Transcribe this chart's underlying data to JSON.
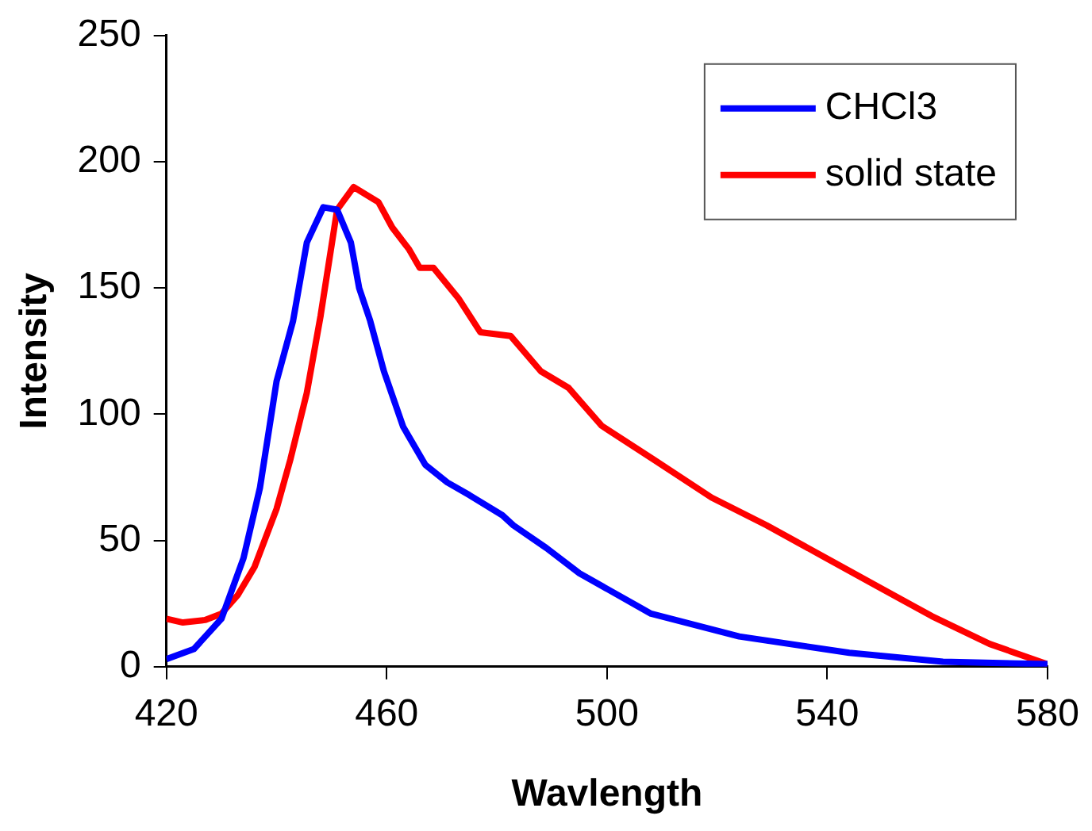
{
  "chart_data": {
    "type": "line",
    "xlabel": "Wavlength",
    "ylabel": "Intensity",
    "xlim": [
      420,
      580
    ],
    "xticks": [
      420,
      460,
      500,
      540,
      580
    ],
    "ylim": [
      0,
      250
    ],
    "yticks": [
      0,
      50,
      100,
      150,
      200,
      250
    ],
    "grid": false,
    "legend": "top right",
    "marker": "none",
    "line_style": "solid",
    "series": [
      {
        "name": "CHCl3",
        "color": "#0000ff",
        "x": [
          420,
          425,
          430,
          434,
          437,
          440,
          443,
          445.5,
          448.5,
          451,
          453.5,
          455,
          457,
          459.5,
          463,
          467,
          471,
          475,
          481,
          483,
          489,
          495,
          508,
          524,
          544,
          561,
          580
        ],
        "values": [
          3,
          7,
          19,
          43,
          71,
          113,
          137,
          168,
          182,
          181,
          168,
          150,
          137,
          117,
          95,
          80,
          73,
          68,
          60,
          56,
          47,
          37,
          21,
          12,
          5.5,
          2,
          1
        ]
      },
      {
        "name": "solid state",
        "color": "#ff0000",
        "x": [
          420,
          423,
          427,
          430,
          433,
          436,
          440,
          442.5,
          445.5,
          448,
          451,
          454,
          458.5,
          461,
          464,
          466,
          468.5,
          473,
          477,
          482.5,
          488,
          493,
          499,
          508.5,
          519,
          529,
          539,
          549,
          559,
          569.5,
          580
        ],
        "values": [
          19,
          17.5,
          18.5,
          21,
          28.5,
          39.5,
          62.5,
          82,
          108.5,
          139,
          181,
          190,
          184,
          174,
          165.5,
          158,
          158,
          146,
          132.5,
          131,
          117,
          110.5,
          95.5,
          82,
          67,
          56,
          44,
          32,
          20,
          9,
          1
        ]
      }
    ]
  }
}
